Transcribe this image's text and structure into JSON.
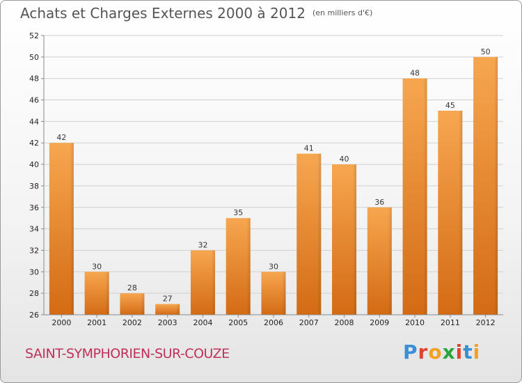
{
  "header": {
    "title": "Achats et Charges Externes 2000 à 2012",
    "unit": "(en milliers d'€)"
  },
  "footer": {
    "commune": "SAINT-SYMPHORIEN-SUR-COUZE",
    "logo_text": "Proxiti",
    "logo_letters": [
      {
        "ch": "P",
        "color": "#3a8fd6"
      },
      {
        "ch": "r",
        "color": "#e0432f"
      },
      {
        "ch": "o",
        "color": "#f4a020"
      },
      {
        "ch": "x",
        "color": "#2aa640"
      },
      {
        "ch": "i",
        "color": "#e0432f"
      },
      {
        "ch": "t",
        "color": "#3a8fd6"
      },
      {
        "ch": "i",
        "color": "#f4a020"
      }
    ]
  },
  "chart_data": {
    "type": "bar",
    "title": "Achats et Charges Externes 2000 à 2012",
    "ylabel": "en milliers d'€",
    "xlabel": "",
    "categories": [
      "2000",
      "2001",
      "2002",
      "2003",
      "2004",
      "2005",
      "2006",
      "2007",
      "2008",
      "2009",
      "2010",
      "2011",
      "2012"
    ],
    "values": [
      42,
      30,
      28,
      27,
      32,
      35,
      30,
      41,
      40,
      36,
      48,
      45,
      50
    ],
    "ylim": [
      26,
      52
    ],
    "yticks": [
      26,
      28,
      30,
      32,
      34,
      36,
      38,
      40,
      42,
      44,
      46,
      48,
      50,
      52
    ],
    "grid": true,
    "bar_color": "#f0882a"
  }
}
